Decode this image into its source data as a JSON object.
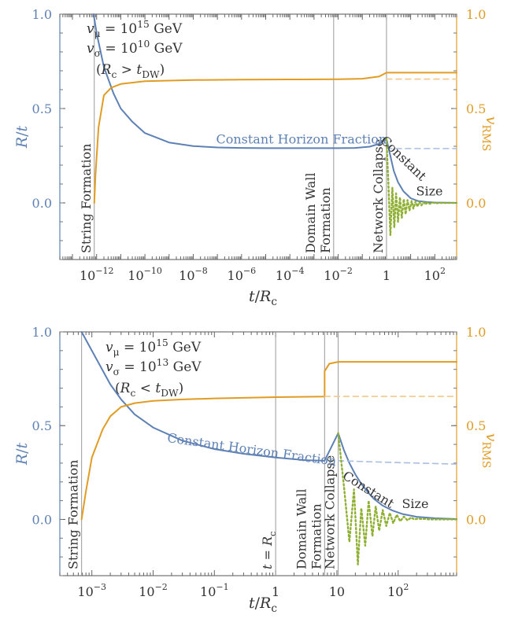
{
  "colors": {
    "blue": "#5e81b5",
    "orange": "#e19c24",
    "green": "#8fb032",
    "gray": "#9a9a9a",
    "text": "#333333"
  },
  "chart_data": [
    {
      "type": "line",
      "panel": "top",
      "xscale": "log",
      "xlabel": "t/R_c",
      "ylabel_left": "R/t",
      "ylabel_right": "v_RMS",
      "xlim": [
        3e-14,
        800
      ],
      "ylim": [
        -0.3,
        1.0
      ],
      "yticks": [
        "0.0",
        "0.5",
        "1.0"
      ],
      "xticks": [
        {
          "value": 1e-12,
          "base": "10",
          "exp": "−12"
        },
        {
          "value": 1e-10,
          "base": "10",
          "exp": "−10"
        },
        {
          "value": 1e-08,
          "base": "10",
          "exp": "−8"
        },
        {
          "value": 1e-06,
          "base": "10",
          "exp": "−6"
        },
        {
          "value": 0.0001,
          "base": "10",
          "exp": "−4"
        },
        {
          "value": 0.01,
          "base": "10",
          "exp": "−2"
        },
        {
          "value": 1,
          "base": "1",
          "exp": ""
        },
        {
          "value": 100,
          "base": "10",
          "exp": "2"
        }
      ],
      "params": [
        {
          "sym": "v",
          "sub": "μ",
          "eq": " = 10",
          "exp": "15",
          "unit": " GeV"
        },
        {
          "sym": "v",
          "sub": "σ",
          "eq": " = 10",
          "exp": "10",
          "unit": " GeV"
        }
      ],
      "regime": {
        "pre": "(R",
        "sub1": "c",
        "mid": " > t",
        "sub2": "DW",
        "post": ")"
      },
      "events": [
        {
          "x": 8e-13,
          "label": [
            "String Formation"
          ]
        },
        {
          "x": 0.0065,
          "label": [
            "Domain Wall",
            "Formation"
          ]
        },
        {
          "x": 1.0,
          "label": [
            "Network Collapse"
          ]
        }
      ],
      "annotations": {
        "horizon": {
          "text": "Constant Horizon Fraction",
          "x": 0.0003,
          "y": 0.315
        },
        "constant": {
          "text": "Constant",
          "x": 3.8,
          "y": 0.22,
          "rotate": 44
        },
        "size": {
          "text": "Size",
          "x": 60,
          "y": 0.04
        }
      },
      "series": [
        {
          "label": "R/t",
          "style": "solid",
          "x": [
            7.5e-13,
            1e-12,
            2e-12,
            5e-12,
            1e-11,
            3e-11,
            1e-10,
            1e-09,
            1e-08,
            1e-07,
            1e-06,
            1e-05,
            0.0001,
            0.001,
            0.01,
            0.05,
            0.2,
            0.5,
            1.0
          ],
          "y": [
            1.0,
            0.9,
            0.72,
            0.58,
            0.5,
            0.43,
            0.37,
            0.32,
            0.301,
            0.294,
            0.291,
            0.29,
            0.29,
            0.29,
            0.29,
            0.291,
            0.298,
            0.313,
            0.338
          ]
        },
        {
          "label": "R/t (after collapse)",
          "style": "solid",
          "x": [
            1.0,
            1.5,
            2,
            3,
            5,
            10,
            20,
            50,
            100,
            300,
            800
          ],
          "y": [
            0.338,
            0.24,
            0.17,
            0.11,
            0.062,
            0.025,
            0.01,
            0.004,
            0.002,
            0.0008,
            0.0
          ]
        },
        {
          "label": "R/t (no collapse)",
          "style": "dashed",
          "x": [
            1.0,
            800
          ],
          "y": [
            0.288,
            0.288
          ]
        },
        {
          "label": "v_RMS",
          "style": "solid",
          "x": [
            8e-13,
            9e-13,
            1.2e-12,
            2e-12,
            4e-12,
            1e-11,
            1e-10,
            1e-08,
            1e-06,
            0.0001,
            0.01,
            0.1,
            0.5,
            1.0,
            800
          ],
          "y": [
            0.0,
            0.15,
            0.4,
            0.57,
            0.61,
            0.63,
            0.645,
            0.651,
            0.653,
            0.654,
            0.655,
            0.658,
            0.67,
            0.69,
            0.69
          ]
        },
        {
          "label": "v_RMS (no collapse)",
          "style": "dashed",
          "x": [
            1.0,
            800
          ],
          "y": [
            0.656,
            0.656
          ]
        },
        {
          "label": "oscillation",
          "style": "dotted",
          "x": [
            1.0,
            1.2,
            1.45,
            1.75,
            2.1,
            2.5,
            3.0,
            3.6,
            4.3,
            5.2,
            6.2,
            7.4,
            9,
            11,
            13,
            16,
            19,
            23,
            28,
            34,
            41,
            50,
            62,
            80,
            110,
            160,
            250,
            800
          ],
          "y": [
            0.338,
            0.1,
            -0.17,
            0.08,
            -0.13,
            0.05,
            -0.1,
            0.03,
            -0.08,
            0.02,
            -0.06,
            0.015,
            -0.04,
            0.01,
            -0.03,
            0.008,
            -0.02,
            0.005,
            -0.013,
            0.004,
            -0.008,
            0.002,
            -0.005,
            0.002,
            -0.002,
            0.0,
            0.0,
            0.0
          ]
        }
      ]
    },
    {
      "type": "line",
      "panel": "bottom",
      "xscale": "log",
      "xlabel": "t/R_c",
      "ylabel_left": "R/t",
      "ylabel_right": "v_RMS",
      "xlim": [
        0.0003,
        900
      ],
      "ylim": [
        -0.3,
        1.0
      ],
      "yticks": [
        "0.0",
        "0.5",
        "1.0"
      ],
      "xticks": [
        {
          "value": 0.001,
          "base": "10",
          "exp": "−3"
        },
        {
          "value": 0.01,
          "base": "10",
          "exp": "−2"
        },
        {
          "value": 0.1,
          "base": "10",
          "exp": "−1"
        },
        {
          "value": 1,
          "base": "1",
          "exp": ""
        },
        {
          "value": 10,
          "base": "10",
          "exp": ""
        },
        {
          "value": 100,
          "base": "10",
          "exp": "2"
        }
      ],
      "params": [
        {
          "sym": "v",
          "sub": "μ",
          "eq": " = 10",
          "exp": "15",
          "unit": " GeV"
        },
        {
          "sym": "v",
          "sub": "σ",
          "eq": " = 10",
          "exp": "13",
          "unit": " GeV"
        }
      ],
      "regime": {
        "pre": "(R",
        "sub1": "c",
        "mid": " < t",
        "sub2": "DW",
        "post": ")"
      },
      "events": [
        {
          "x": 0.00068,
          "label": [
            "String Formation"
          ]
        },
        {
          "x": 1.0,
          "label": [
            "t = R_c"
          ],
          "italic": true
        },
        {
          "x": 6.3,
          "label": [
            "Domain Wall",
            "Formation"
          ]
        },
        {
          "x": 10.5,
          "label": [
            "Network Collapse"
          ]
        }
      ],
      "annotations": {
        "horizon": {
          "text": "Constant Horizon Fraction",
          "x": 0.4,
          "y": 0.35
        },
        "constant": {
          "text": "Constant",
          "x": 30,
          "y": 0.14,
          "rotate": 32
        },
        "size": {
          "text": "Size",
          "x": 190,
          "y": 0.06
        }
      },
      "series": [
        {
          "label": "R/t",
          "style": "solid",
          "x": [
            0.00068,
            0.001,
            0.002,
            0.003,
            0.005,
            0.01,
            0.03,
            0.1,
            0.3,
            1,
            3,
            6.3,
            10.5
          ],
          "y": [
            1.0,
            0.9,
            0.72,
            0.64,
            0.56,
            0.49,
            0.42,
            0.375,
            0.35,
            0.33,
            0.316,
            0.313,
            0.46
          ]
        },
        {
          "label": "R/t (after collapse)",
          "style": "solid",
          "x": [
            10.5,
            13,
            16,
            20,
            25,
            32,
            40,
            55,
            80,
            120,
            200,
            400,
            900
          ],
          "y": [
            0.46,
            0.37,
            0.3,
            0.24,
            0.19,
            0.145,
            0.11,
            0.075,
            0.048,
            0.028,
            0.014,
            0.006,
            0.002
          ]
        },
        {
          "label": "R/t (no collapse)",
          "style": "dashed",
          "x": [
            10.5,
            30,
            100,
            300,
            900
          ],
          "y": [
            0.313,
            0.308,
            0.303,
            0.299,
            0.295
          ]
        },
        {
          "label": "v_RMS",
          "style": "solid",
          "x": [
            0.00068,
            0.0008,
            0.001,
            0.0015,
            0.002,
            0.003,
            0.005,
            0.01,
            0.03,
            0.1,
            1,
            6.3,
            6.3,
            7.5,
            10.5,
            900
          ],
          "y": [
            0.0,
            0.15,
            0.33,
            0.48,
            0.55,
            0.6,
            0.62,
            0.632,
            0.64,
            0.645,
            0.652,
            0.655,
            0.79,
            0.83,
            0.84,
            0.84
          ]
        },
        {
          "label": "v_RMS (no collapse)",
          "style": "dashed",
          "x": [
            6.3,
            900
          ],
          "y": [
            0.656,
            0.656
          ]
        },
        {
          "label": "oscillation",
          "style": "dotted",
          "x": [
            10.5,
            13,
            16,
            19,
            22,
            25,
            29,
            33,
            38,
            43,
            49,
            56,
            64,
            73,
            83,
            95,
            108,
            124,
            142,
            162,
            185,
            212,
            242,
            277,
            320,
            400,
            600,
            900
          ],
          "y": [
            0.46,
            0.18,
            -0.12,
            0.16,
            -0.24,
            0.06,
            -0.14,
            0.1,
            -0.09,
            0.07,
            -0.06,
            0.05,
            -0.035,
            0.035,
            -0.02,
            0.025,
            -0.01,
            0.015,
            -0.005,
            0.01,
            0.0,
            0.005,
            0.002,
            0.003,
            0.0,
            0.0,
            0.0,
            0.0
          ]
        }
      ]
    }
  ]
}
